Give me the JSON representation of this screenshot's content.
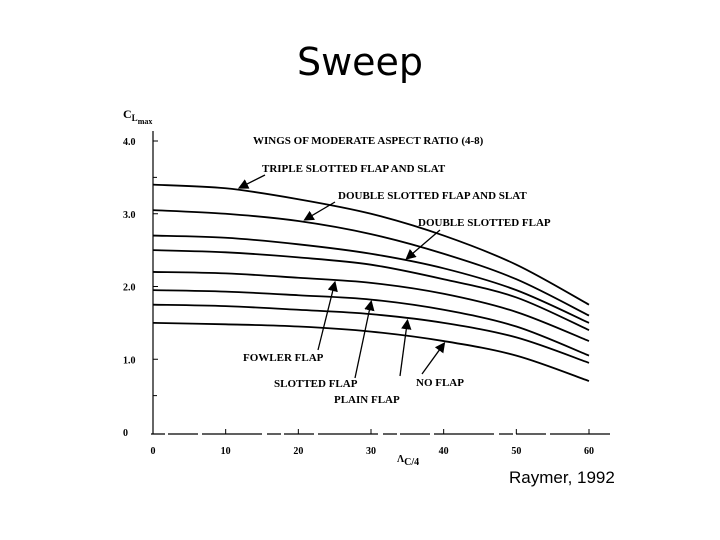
{
  "slide": {
    "title": "Sweep",
    "credit": "Raymer, 1992"
  },
  "chart_data": {
    "type": "line",
    "title": "WINGS OF MODERATE ASPECT RATIO (4-8)",
    "ylabel": {
      "main": "C",
      "sub": "L",
      "subsub": "max"
    },
    "xlabel": {
      "main": "Λ",
      "sub": "C/4"
    },
    "xlim": [
      0,
      60
    ],
    "ylim": [
      0,
      4.0
    ],
    "x_ticks": [
      "0",
      "10",
      "20",
      "30",
      "40",
      "50",
      "60"
    ],
    "y_ticks": [
      "0",
      "1.0",
      "2.0",
      "3.0",
      "4.0"
    ],
    "y_tick_values": [
      0,
      1,
      2,
      3,
      4
    ],
    "grid": false,
    "x": [
      0,
      10,
      20,
      30,
      40,
      50,
      60
    ],
    "series": [
      {
        "name": "TRIPLE SLOTTED FLAP AND SLAT",
        "values": [
          3.4,
          3.35,
          3.2,
          3.0,
          2.7,
          2.3,
          1.75
        ]
      },
      {
        "name": "DOUBLE SLOTTED FLAP AND SLAT",
        "values": [
          3.05,
          3.0,
          2.9,
          2.72,
          2.45,
          2.1,
          1.6
        ]
      },
      {
        "name": "DOUBLE SLOTTED FLAP",
        "values": [
          2.7,
          2.67,
          2.58,
          2.45,
          2.25,
          1.95,
          1.5
        ]
      },
      {
        "name": "",
        "values": [
          2.5,
          2.47,
          2.4,
          2.3,
          2.1,
          1.85,
          1.4
        ]
      },
      {
        "name": "FOWLER FLAP",
        "values": [
          2.2,
          2.18,
          2.12,
          2.05,
          1.9,
          1.65,
          1.25
        ]
      },
      {
        "name": "SLOTTED FLAP",
        "values": [
          1.95,
          1.93,
          1.88,
          1.82,
          1.68,
          1.45,
          1.05
        ]
      },
      {
        "name": "PLAIN FLAP",
        "values": [
          1.75,
          1.73,
          1.68,
          1.62,
          1.5,
          1.3,
          0.95
        ]
      },
      {
        "name": "NO FLAP",
        "values": [
          1.5,
          1.48,
          1.45,
          1.38,
          1.25,
          1.05,
          0.7
        ]
      }
    ]
  }
}
